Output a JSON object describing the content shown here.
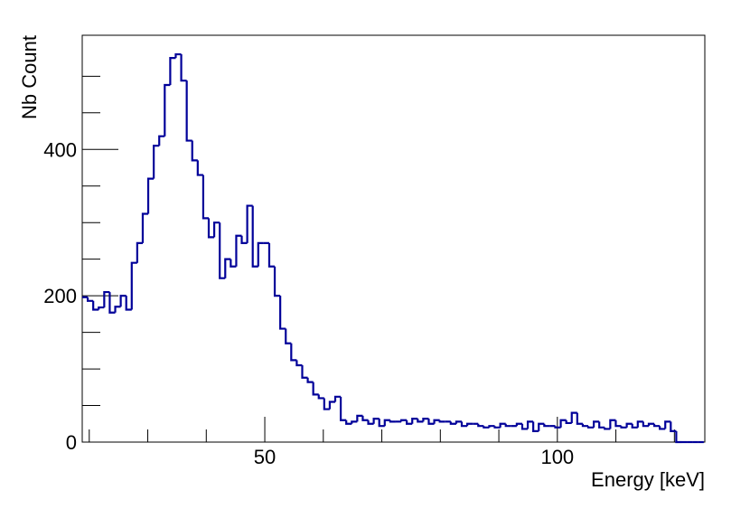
{
  "chart_data": {
    "type": "histogram",
    "xlabel": "Energy [keV]",
    "ylabel": "Nb Count",
    "color": "#000099",
    "bins": [
      18.8,
      19.74,
      20.68,
      21.62,
      22.56,
      23.5,
      24.44,
      25.38,
      26.32,
      27.26,
      28.2,
      29.14,
      30.08,
      31.02,
      31.96,
      32.9,
      33.84,
      34.78,
      35.72,
      36.66,
      37.6,
      38.54,
      39.48,
      40.42,
      41.36,
      42.3,
      43.24,
      44.18,
      45.12,
      46.06,
      47,
      47.94,
      48.88,
      49.82,
      50.76,
      51.7,
      52.64,
      53.58,
      54.52,
      55.46,
      56.4,
      57.34,
      58.28,
      59.22,
      60.16,
      61.1,
      62.04,
      62.98,
      63.92,
      64.86,
      65.8,
      66.74,
      67.68,
      68.62,
      69.56,
      70.5,
      71.44,
      72.38,
      73.32,
      74.26,
      75.2,
      76.14,
      77.08,
      78.02,
      78.96,
      79.9,
      80.84,
      81.78,
      82.72,
      83.66,
      84.6,
      85.54,
      86.48,
      87.42,
      88.36,
      89.3,
      90.24,
      91.18,
      92.12,
      93.06,
      94,
      94.94,
      95.88,
      96.82,
      97.76,
      98.7,
      99.64,
      100.58,
      101.52,
      102.46,
      103.4,
      104.34,
      105.28,
      106.22,
      107.16,
      108.1,
      109.04,
      109.98,
      110.92,
      111.86,
      112.8,
      113.74,
      114.68,
      115.62,
      116.56,
      117.5,
      118.44,
      119.38,
      120.32,
      121.26,
      122.2,
      123.14,
      124.08,
      125.02
    ],
    "values": [
      198,
      193,
      181,
      184,
      205,
      177,
      185,
      200,
      181,
      245,
      272,
      312,
      360,
      405,
      418,
      488,
      525,
      530,
      494,
      412,
      385,
      365,
      306,
      280,
      300,
      224,
      250,
      240,
      282,
      272,
      323,
      240,
      272,
      272,
      240,
      200,
      155,
      135,
      112,
      105,
      88,
      82,
      65,
      60,
      45,
      55,
      62,
      30,
      25,
      28,
      36,
      30,
      25,
      32,
      22,
      30,
      28,
      28,
      30,
      25,
      32,
      28,
      32,
      25,
      30,
      28,
      28,
      25,
      28,
      22,
      25,
      25,
      22,
      20,
      22,
      20,
      25,
      22,
      22,
      25,
      18,
      28,
      15,
      25,
      22,
      22,
      20,
      30,
      26,
      40,
      25,
      22,
      20,
      28,
      20,
      18,
      30,
      22,
      20,
      25,
      20,
      28,
      22,
      25,
      22,
      18,
      28,
      15,
      0,
      0,
      0,
      0,
      0
    ],
    "xlim": [
      18.8,
      125.2
    ],
    "ylim": [
      0,
      556
    ],
    "xticks": [
      50,
      100
    ],
    "xminorticks": [
      20,
      30,
      40,
      60,
      70,
      80,
      90,
      110,
      120
    ],
    "yticks": [
      0,
      200,
      400
    ],
    "yminorticks": [
      50,
      100,
      150,
      250,
      300,
      350,
      450,
      500
    ]
  }
}
